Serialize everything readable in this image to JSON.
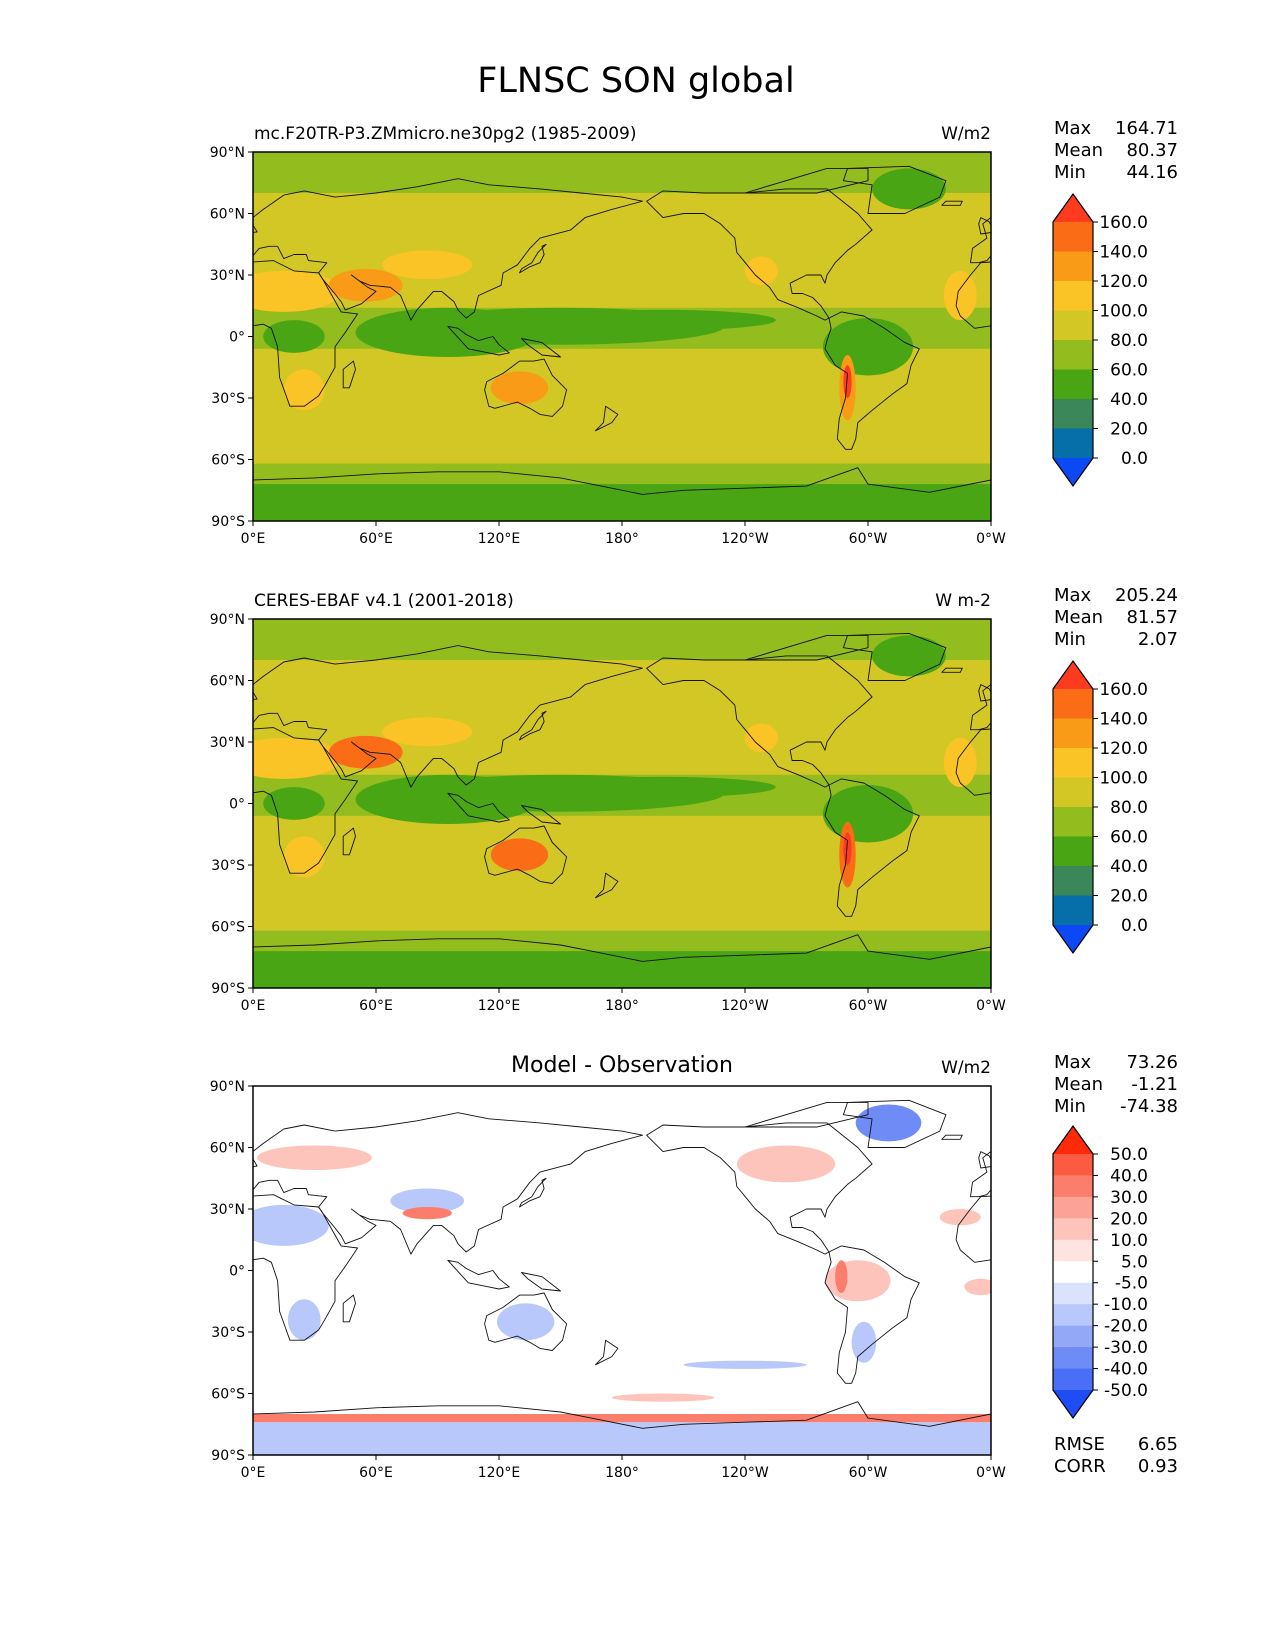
{
  "figure": {
    "title": "FLNSC SON global"
  },
  "axes": {
    "lat_labels": [
      "90°N",
      "60°N",
      "30°N",
      "0°",
      "30°S",
      "60°S",
      "90°S"
    ],
    "lon_labels": [
      "0°E",
      "60°E",
      "120°E",
      "180°",
      "120°W",
      "60°W",
      "0°W"
    ]
  },
  "panels": [
    {
      "left_title": "mc.F20TR-P3.ZMmicro.ne30pg2 (1985-2009)",
      "center_title": "",
      "units": "W/m2",
      "stats": {
        "labels": [
          "Max",
          "Mean",
          "Min"
        ],
        "values": [
          "164.71",
          "80.37",
          "44.16"
        ]
      },
      "colorbar": {
        "labels": [
          "160.0",
          "140.0",
          "120.0",
          "100.0",
          "80.0",
          "60.0",
          "40.0",
          "20.0",
          "0.0"
        ],
        "colors": [
          "#ff3b1f",
          "#fb6c16",
          "#f99b17",
          "#fbc426",
          "#d2c725",
          "#93bc1e",
          "#4aa514",
          "#3b8759",
          "#066fa9",
          "#0c48f4"
        ]
      },
      "field": {
        "background": "#d2c725",
        "ocean_band_color": "#93bc1e",
        "itcz_color": "#4aa514",
        "hot_color": "#fbc426",
        "hotter_color": "#f99b17",
        "peak_color": "#ff3b1f"
      },
      "footer": {
        "labels": [],
        "values": []
      }
    },
    {
      "left_title": "CERES-EBAF v4.1 (2001-2018)",
      "center_title": "",
      "units": "W m-2",
      "stats": {
        "labels": [
          "Max",
          "Mean",
          "Min"
        ],
        "values": [
          "205.24",
          "81.57",
          "2.07"
        ]
      },
      "colorbar": {
        "labels": [
          "160.0",
          "140.0",
          "120.0",
          "100.0",
          "80.0",
          "60.0",
          "40.0",
          "20.0",
          "0.0"
        ],
        "colors": [
          "#ff3b1f",
          "#fb6c16",
          "#f99b17",
          "#fbc426",
          "#d2c725",
          "#93bc1e",
          "#4aa514",
          "#3b8759",
          "#066fa9",
          "#0c48f4"
        ]
      },
      "field": {
        "background": "#d2c725",
        "ocean_band_color": "#93bc1e",
        "itcz_color": "#4aa514",
        "hot_color": "#fbc426",
        "hotter_color": "#fb6c16",
        "peak_color": "#ff3b1f"
      },
      "footer": {
        "labels": [],
        "values": []
      }
    },
    {
      "left_title": "",
      "center_title": "Model - Observation",
      "units": "W/m2",
      "stats": {
        "labels": [
          "Max",
          "Mean",
          "Min"
        ],
        "values": [
          "73.26",
          "-1.21",
          "-74.38"
        ]
      },
      "colorbar": {
        "labels": [
          "50.0",
          "40.0",
          "30.0",
          "20.0",
          "10.0",
          "5.0",
          "-5.0",
          "-10.0",
          "-20.0",
          "-30.0",
          "-40.0",
          "-50.0"
        ],
        "colors": [
          "#ff2a0a",
          "#fd5a42",
          "#fb7e6c",
          "#fca296",
          "#fdc4bc",
          "#fee4e0",
          "#ffffff",
          "#dbe3fc",
          "#b9c8fa",
          "#93a9f8",
          "#6f8cf6",
          "#4a6ef5",
          "#1f4cf5"
        ]
      },
      "field": {
        "background": "#ffffff",
        "pos_color": "#fdc4bc",
        "pos_strong_color": "#fb7e6c",
        "neg_color": "#b9c8fa",
        "neg_strong_color": "#6f8cf6"
      },
      "footer": {
        "labels": [
          "RMSE",
          "CORR"
        ],
        "values": [
          "6.65",
          "0.93"
        ]
      }
    }
  ]
}
